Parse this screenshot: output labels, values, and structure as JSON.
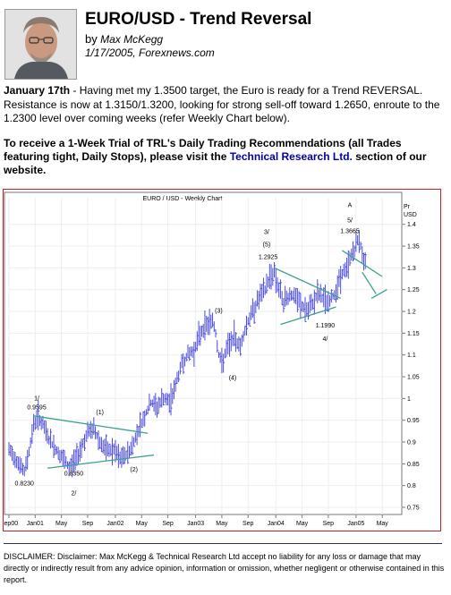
{
  "article": {
    "title": "EURO/USD - Trend Reversal",
    "by": "by",
    "author": "Max McKegg",
    "date_source": "1/17/2005, Forexnews.com"
  },
  "intro": {
    "date_lead": "January 17th",
    "text": " - Having met my 1.3500 target, the Euro is ready for a Trend REVERSAL. Resistance is now at 1.3150/1.3200, looking for strong sell-off toward 1.2650, enroute to the 1.2300 level over coming weeks (refer Weekly Chart below)."
  },
  "promo": {
    "text_before": "To receive a 1-Week Trial of TRL's Daily Trading Recommendations (all Trades featuring tight, Daily Stops), please visit the ",
    "link": "Technical Research Ltd.",
    "text_after": " section of our website."
  },
  "chart_data": {
    "type": "bar",
    "title": "EURO / USD     -     Weekly   Chart",
    "axis_unit_top": "Pr",
    "axis_unit": "USD",
    "ylim": [
      0.75,
      1.45
    ],
    "yticks": [
      "1.4",
      "1.35",
      "1.3",
      "1.25",
      "1.2",
      "1.15",
      "1.1",
      "1.05",
      "1",
      "0.95",
      "0.9",
      "0.85",
      "0.8",
      "0.75"
    ],
    "yvalues": [
      1.4,
      1.35,
      1.3,
      1.25,
      1.2,
      1.15,
      1.1,
      1.05,
      1.0,
      0.95,
      0.9,
      0.85,
      0.8,
      0.75
    ],
    "xlim": [
      0,
      250
    ],
    "xticks": [
      {
        "label": "Sep00",
        "x": 0
      },
      {
        "label": "Jan01",
        "x": 17
      },
      {
        "label": "May",
        "x": 34
      },
      {
        "label": "Sep",
        "x": 51
      },
      {
        "label": "Jan02",
        "x": 69
      },
      {
        "label": "May",
        "x": 86
      },
      {
        "label": "Sep",
        "x": 103
      },
      {
        "label": "Jan03",
        "x": 121
      },
      {
        "label": "May",
        "x": 138
      },
      {
        "label": "Sep",
        "x": 155
      },
      {
        "label": "Jan04",
        "x": 173
      },
      {
        "label": "May",
        "x": 190
      },
      {
        "label": "Sep",
        "x": 207
      },
      {
        "label": "Jan05",
        "x": 225
      },
      {
        "label": "May",
        "x": 242
      }
    ],
    "price_path": [
      [
        0,
        0.88
      ],
      [
        5,
        0.86
      ],
      [
        10,
        0.83
      ],
      [
        13,
        0.88
      ],
      [
        16,
        0.94
      ],
      [
        19,
        0.96
      ],
      [
        23,
        0.93
      ],
      [
        27,
        0.9
      ],
      [
        31,
        0.88
      ],
      [
        35,
        0.86
      ],
      [
        39,
        0.84
      ],
      [
        43,
        0.86
      ],
      [
        47,
        0.89
      ],
      [
        51,
        0.92
      ],
      [
        55,
        0.93
      ],
      [
        59,
        0.9
      ],
      [
        63,
        0.88
      ],
      [
        68,
        0.88
      ],
      [
        72,
        0.86
      ],
      [
        76,
        0.87
      ],
      [
        80,
        0.89
      ],
      [
        84,
        0.93
      ],
      [
        88,
        0.96
      ],
      [
        92,
        0.99
      ],
      [
        96,
        0.98
      ],
      [
        100,
        1.0
      ],
      [
        104,
        0.99
      ],
      [
        108,
        1.03
      ],
      [
        112,
        1.08
      ],
      [
        116,
        1.1
      ],
      [
        120,
        1.11
      ],
      [
        124,
        1.15
      ],
      [
        128,
        1.17
      ],
      [
        132,
        1.18
      ],
      [
        134,
        1.15
      ],
      [
        136,
        1.1
      ],
      [
        138,
        1.08
      ],
      [
        142,
        1.12
      ],
      [
        146,
        1.14
      ],
      [
        150,
        1.12
      ],
      [
        154,
        1.17
      ],
      [
        158,
        1.2
      ],
      [
        162,
        1.23
      ],
      [
        166,
        1.25
      ],
      [
        169,
        1.28
      ],
      [
        172,
        1.29
      ],
      [
        175,
        1.25
      ],
      [
        178,
        1.22
      ],
      [
        182,
        1.24
      ],
      [
        186,
        1.23
      ],
      [
        190,
        1.21
      ],
      [
        194,
        1.2
      ],
      [
        197,
        1.22
      ],
      [
        200,
        1.24
      ],
      [
        204,
        1.23
      ],
      [
        207,
        1.22
      ],
      [
        211,
        1.24
      ],
      [
        215,
        1.28
      ],
      [
        219,
        1.3
      ],
      [
        222,
        1.33
      ],
      [
        225,
        1.35
      ],
      [
        227,
        1.37
      ],
      [
        229,
        1.33
      ],
      [
        231,
        1.31
      ]
    ],
    "series_colors": {
      "bars": "#4d4de0",
      "trendlines": "#3aa090"
    },
    "trendlines": [
      [
        [
          16,
          0.96
        ],
        [
          90,
          0.92
        ]
      ],
      [
        [
          25,
          0.84
        ],
        [
          94,
          0.87
        ]
      ],
      [
        [
          172,
          1.3
        ],
        [
          215,
          1.23
        ]
      ],
      [
        [
          176,
          1.17
        ],
        [
          212,
          1.21
        ]
      ],
      [
        [
          216,
          1.34
        ],
        [
          242,
          1.28
        ]
      ],
      [
        [
          229,
          1.29
        ],
        [
          238,
          1.24
        ]
      ],
      [
        [
          235,
          1.23
        ],
        [
          245,
          1.25
        ]
      ]
    ],
    "annotations": [
      {
        "text": "1/",
        "x": 18,
        "y": 0.996
      },
      {
        "text": "0.9595",
        "x": 18,
        "y": 0.975
      },
      {
        "text": "0.8230",
        "x": 10,
        "y": 0.8
      },
      {
        "text": "(1)",
        "x": 59,
        "y": 0.964
      },
      {
        "text": "0.8350",
        "x": 42,
        "y": 0.823
      },
      {
        "text": "2/",
        "x": 42,
        "y": 0.778
      },
      {
        "text": "(2)",
        "x": 81,
        "y": 0.832
      },
      {
        "text": "(3)",
        "x": 136,
        "y": 1.197
      },
      {
        "text": "(4)",
        "x": 145,
        "y": 1.043
      },
      {
        "text": "3/",
        "x": 167,
        "y": 1.378
      },
      {
        "text": "(5)",
        "x": 167,
        "y": 1.349
      },
      {
        "text": "1.2925",
        "x": 168,
        "y": 1.32
      },
      {
        "text": "1.1990",
        "x": 205,
        "y": 1.163
      },
      {
        "text": "4/",
        "x": 205,
        "y": 1.132
      },
      {
        "text": "A",
        "x": 221,
        "y": 1.44
      },
      {
        "text": "5/",
        "x": 221,
        "y": 1.405
      },
      {
        "text": "1.3665",
        "x": 221,
        "y": 1.38
      }
    ]
  },
  "disclaimer": "DISCLAIMER: Disclaimer: Max McKegg & Technical Research Ltd accept no liability for any loss or damage that may directly or indirectly result from any advice opinion, information or omission, whether negligent or otherwise contained in this report."
}
